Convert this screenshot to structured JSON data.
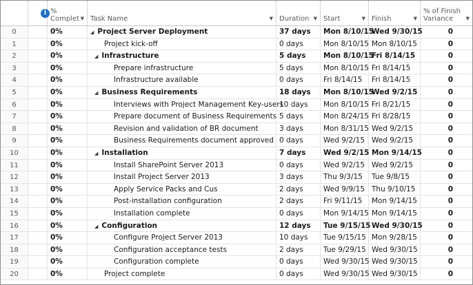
{
  "columns": {
    "indicator_icon": "info-icon",
    "pct": [
      "%",
      "Complet"
    ],
    "name": "Task Name",
    "duration": "Duration",
    "start": "Start",
    "finish": "Finish",
    "variance": [
      "% of Finish",
      "Variance"
    ]
  },
  "tasks": [
    {
      "id": "0",
      "pct": "0%",
      "name": "Project Server Deployment",
      "duration": "37 days",
      "start": "Mon 8/10/15",
      "finish": "Wed 9/30/15",
      "variance": "0",
      "level": 0,
      "summary": true
    },
    {
      "id": "1",
      "pct": "0%",
      "name": "Project kick-off",
      "duration": "0 days",
      "start": "Mon 8/10/15",
      "finish": "Mon 8/10/15",
      "variance": "0",
      "level": 1,
      "summary": false
    },
    {
      "id": "2",
      "pct": "0%",
      "name": "Infrastructure",
      "duration": "5 days",
      "start": "Mon 8/10/15",
      "finish": "Fri 8/14/15",
      "variance": "0",
      "level": 1,
      "summary": true
    },
    {
      "id": "3",
      "pct": "0%",
      "name": "Prepare infrastructure",
      "duration": "5 days",
      "start": "Mon 8/10/15",
      "finish": "Fri 8/14/15",
      "variance": "0",
      "level": 2,
      "summary": false
    },
    {
      "id": "4",
      "pct": "0%",
      "name": "Infrastructure available",
      "duration": "0 days",
      "start": "Fri 8/14/15",
      "finish": "Fri 8/14/15",
      "variance": "0",
      "level": 2,
      "summary": false
    },
    {
      "id": "5",
      "pct": "0%",
      "name": "Business Requirements",
      "duration": "18 days",
      "start": "Mon 8/10/15",
      "finish": "Wed 9/2/15",
      "variance": "0",
      "level": 1,
      "summary": true
    },
    {
      "id": "6",
      "pct": "0%",
      "name": "Interviews with Project Management Key-users",
      "duration": "10 days",
      "start": "Mon 8/10/15",
      "finish": "Fri 8/21/15",
      "variance": "0",
      "level": 2,
      "summary": false
    },
    {
      "id": "7",
      "pct": "0%",
      "name": "Prepare document of Business Requirements",
      "duration": "5 days",
      "start": "Mon 8/24/15",
      "finish": "Fri 8/28/15",
      "variance": "0",
      "level": 2,
      "summary": false
    },
    {
      "id": "8",
      "pct": "0%",
      "name": "Revision and validation of BR document",
      "duration": "3 days",
      "start": "Mon 8/31/15",
      "finish": "Wed 9/2/15",
      "variance": "0",
      "level": 2,
      "summary": false
    },
    {
      "id": "9",
      "pct": "0%",
      "name": "Business Requirements document approved",
      "duration": "0 days",
      "start": "Wed 9/2/15",
      "finish": "Wed 9/2/15",
      "variance": "0",
      "level": 2,
      "summary": false
    },
    {
      "id": "10",
      "pct": "0%",
      "name": "Installation",
      "duration": "7 days",
      "start": "Wed 9/2/15",
      "finish": "Mon 9/14/15",
      "variance": "0",
      "level": 1,
      "summary": true
    },
    {
      "id": "11",
      "pct": "0%",
      "name": "Install SharePoint Server 2013",
      "duration": "0 days",
      "start": "Wed 9/2/15",
      "finish": "Wed 9/2/15",
      "variance": "0",
      "level": 2,
      "summary": false
    },
    {
      "id": "12",
      "pct": "0%",
      "name": "Install Project Server 2013",
      "duration": "3 days",
      "start": "Thu 9/3/15",
      "finish": "Tue 9/8/15",
      "variance": "0",
      "level": 2,
      "summary": false
    },
    {
      "id": "13",
      "pct": "0%",
      "name": "Apply Service Packs and Cus",
      "duration": "2 days",
      "start": "Wed 9/9/15",
      "finish": "Thu 9/10/15",
      "variance": "0",
      "level": 2,
      "summary": false
    },
    {
      "id": "14",
      "pct": "0%",
      "name": "Post-installation configuration",
      "duration": "2 days",
      "start": "Fri 9/11/15",
      "finish": "Mon 9/14/15",
      "variance": "0",
      "level": 2,
      "summary": false
    },
    {
      "id": "15",
      "pct": "0%",
      "name": "Installation complete",
      "duration": "0 days",
      "start": "Mon 9/14/15",
      "finish": "Mon 9/14/15",
      "variance": "0",
      "level": 2,
      "summary": false
    },
    {
      "id": "16",
      "pct": "0%",
      "name": "Configuration",
      "duration": "12 days",
      "start": "Tue 9/15/15",
      "finish": "Wed 9/30/15",
      "variance": "0",
      "level": 1,
      "summary": true
    },
    {
      "id": "17",
      "pct": "0%",
      "name": "Configure Project Server 2013",
      "duration": "10 days",
      "start": "Tue 9/15/15",
      "finish": "Mon 9/28/15",
      "variance": "0",
      "level": 2,
      "summary": false
    },
    {
      "id": "18",
      "pct": "0%",
      "name": "Configuration acceptance tests",
      "duration": "2 days",
      "start": "Tue 9/29/15",
      "finish": "Wed 9/30/15",
      "variance": "0",
      "level": 2,
      "summary": false
    },
    {
      "id": "19",
      "pct": "0%",
      "name": "Configuration complete",
      "duration": "0 days",
      "start": "Wed 9/30/15",
      "finish": "Wed 9/30/15",
      "variance": "0",
      "level": 2,
      "summary": false
    },
    {
      "id": "20",
      "pct": "0%",
      "name": "Project complete",
      "duration": "0 days",
      "start": "Wed 9/30/15",
      "finish": "Wed 9/30/15",
      "variance": "0",
      "level": 1,
      "summary": false
    }
  ]
}
